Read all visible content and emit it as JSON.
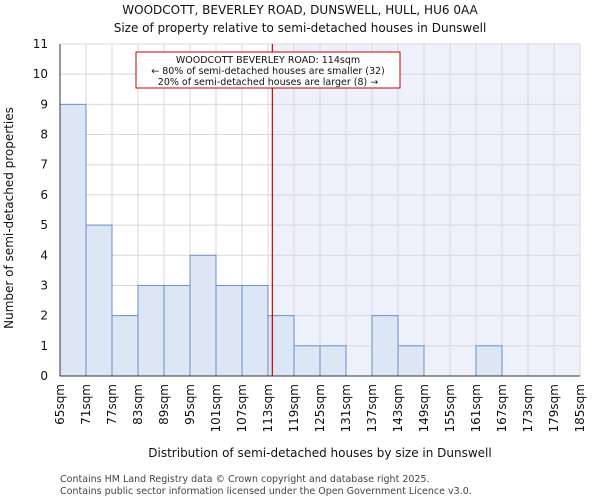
{
  "title_line1": "WOODCOTT, BEVERLEY ROAD, DUNSWELL, HULL, HU6 0AA",
  "title_line2": "Size of property relative to semi-detached houses in Dunswell",
  "footer_line1": "Contains HM Land Registry data © Crown copyright and database right 2025.",
  "footer_line2": "Contains public sector information licensed under the Open Government Licence v3.0.",
  "chart_data": {
    "type": "bar",
    "xlabel": "Distribution of semi-detached houses by size in Dunswell",
    "ylabel": "Number of semi-detached properties",
    "ylim": [
      0,
      11
    ],
    "yticks": [
      0,
      1,
      2,
      3,
      4,
      5,
      6,
      7,
      8,
      9,
      10,
      11
    ],
    "bin_edges": [
      65,
      71,
      77,
      83,
      89,
      95,
      101,
      107,
      113,
      119,
      125,
      131,
      137,
      143,
      149,
      155,
      161,
      167,
      173,
      179,
      185
    ],
    "tick_labels": [
      "65sqm",
      "71sqm",
      "77sqm",
      "83sqm",
      "89sqm",
      "95sqm",
      "101sqm",
      "107sqm",
      "113sqm",
      "119sqm",
      "125sqm",
      "131sqm",
      "137sqm",
      "143sqm",
      "149sqm",
      "155sqm",
      "161sqm",
      "167sqm",
      "173sqm",
      "179sqm",
      "185sqm"
    ],
    "values": [
      9,
      5,
      2,
      3,
      3,
      4,
      3,
      3,
      2,
      1,
      1,
      0,
      2,
      1,
      0,
      0,
      1,
      0,
      0,
      0
    ],
    "marker_value": 114,
    "annotation": [
      "WOODCOTT BEVERLEY ROAD: 114sqm",
      "← 80% of semi-detached houses are smaller (32)",
      "20% of semi-detached houses are larger (8) →"
    ],
    "grid": true,
    "colors": {
      "bar_fill": "#dce6f5",
      "bar_edge": "#6a8fcb",
      "right_shade": "#eef1fb",
      "marker": "#cc0000",
      "grid": "#d8d8d8"
    }
  }
}
